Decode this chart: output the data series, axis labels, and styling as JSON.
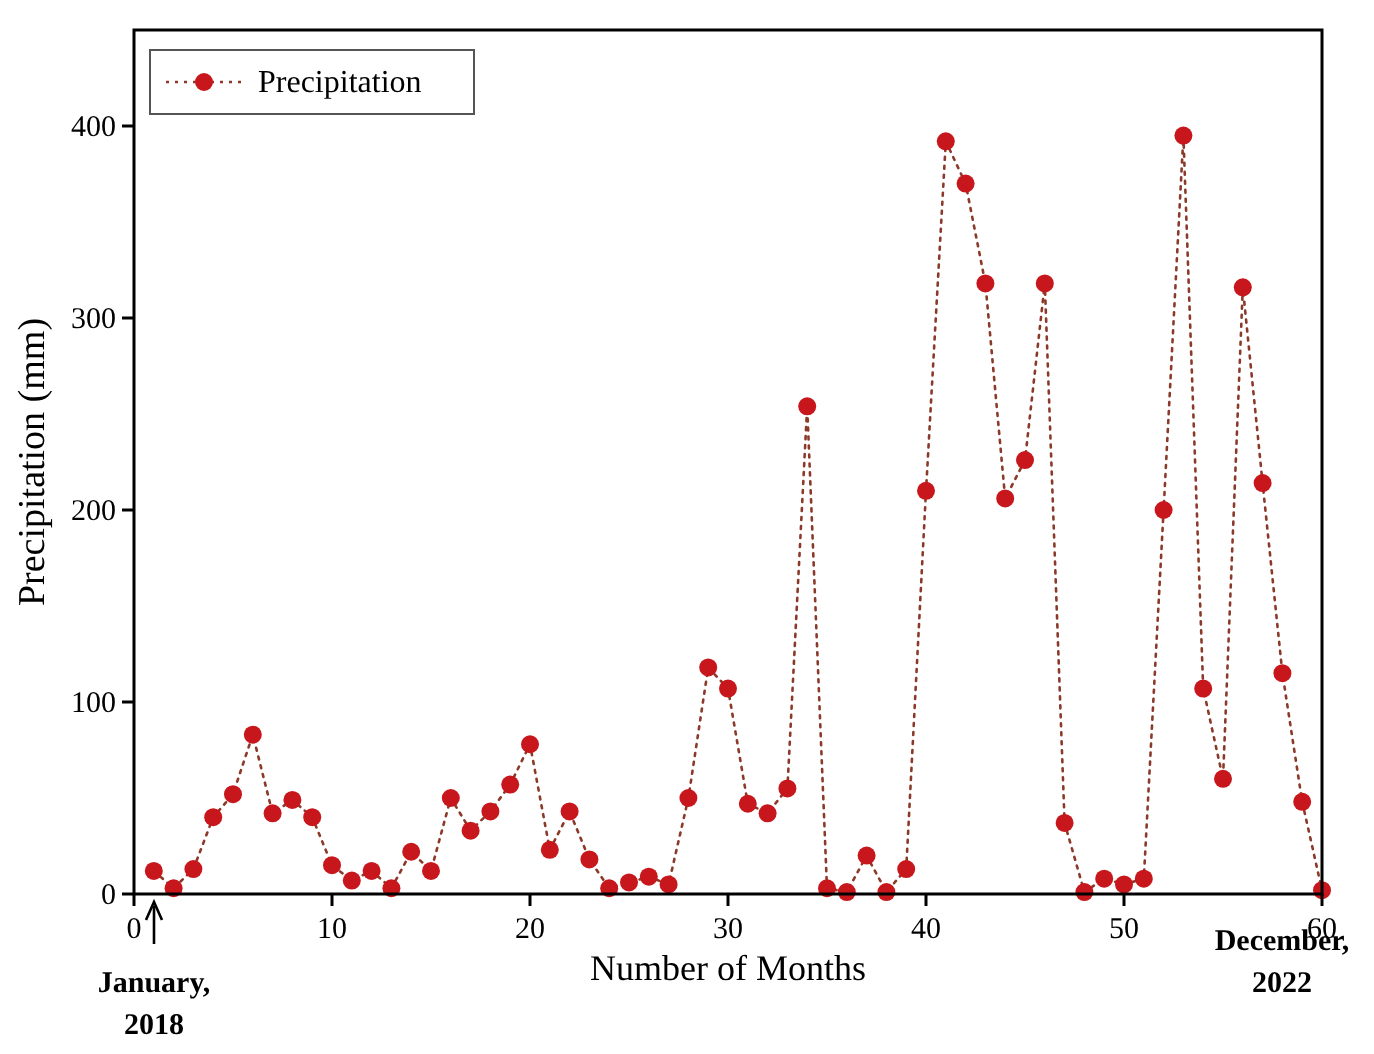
{
  "chart_data": {
    "type": "line",
    "xlabel": "Number of Months",
    "ylabel": "Precipitation (mm)",
    "x": [
      1,
      2,
      3,
      4,
      5,
      6,
      7,
      8,
      9,
      10,
      11,
      12,
      13,
      14,
      15,
      16,
      17,
      18,
      19,
      20,
      21,
      22,
      23,
      24,
      25,
      26,
      27,
      28,
      29,
      30,
      31,
      32,
      33,
      34,
      35,
      36,
      37,
      38,
      39,
      40,
      41,
      42,
      43,
      44,
      45,
      46,
      47,
      48,
      49,
      50,
      51,
      52,
      53,
      54,
      55,
      56,
      57,
      58,
      59,
      60
    ],
    "series": [
      {
        "name": "Precipitation",
        "color": "#c8171c",
        "values": [
          12,
          3,
          13,
          40,
          52,
          83,
          42,
          49,
          40,
          15,
          7,
          12,
          3,
          22,
          12,
          50,
          33,
          43,
          57,
          78,
          23,
          43,
          18,
          3,
          6,
          9,
          5,
          50,
          118,
          107,
          47,
          42,
          55,
          254,
          3,
          1,
          20,
          1,
          13,
          210,
          392,
          370,
          318,
          206,
          226,
          318,
          37,
          1,
          8,
          5,
          8,
          200,
          395,
          107,
          60,
          316,
          214,
          115,
          48,
          2
        ]
      }
    ],
    "xlim": [
      0,
      60
    ],
    "ylim": [
      0,
      450
    ],
    "xticks": [
      0,
      10,
      20,
      30,
      40,
      50,
      60
    ],
    "yticks": [
      0,
      100,
      200,
      300,
      400
    ],
    "grid": false,
    "legend": "top left",
    "marker": "circle",
    "line_style": "dotted",
    "annotations": [
      "January,\n2018",
      "December,\n2022"
    ]
  }
}
